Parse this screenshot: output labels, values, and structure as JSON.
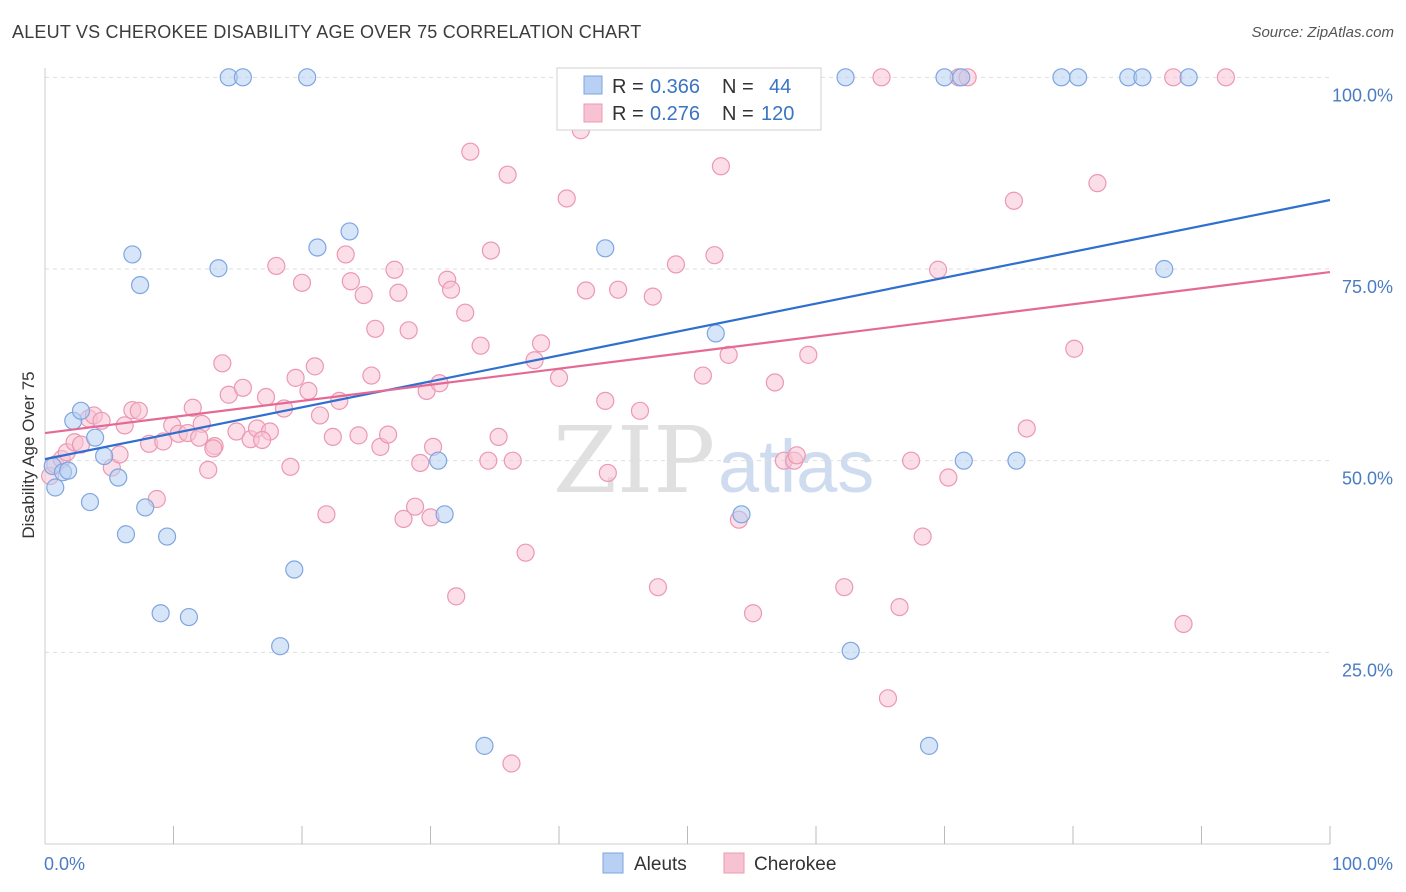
{
  "header": {
    "title": "ALEUT VS CHEROKEE DISABILITY AGE OVER 75 CORRELATION CHART",
    "source": "Source: ZipAtlas.com"
  },
  "watermark": {
    "zip": "ZIP",
    "atlas": "atlas"
  },
  "colors": {
    "aleut_fill": "#b7d0f3",
    "aleut_stroke": "#7ea6e0",
    "aleut_line": "#2f6fd0",
    "cherokee_fill": "#f7c3d3",
    "cherokee_stroke": "#ec98b3",
    "cherokee_line": "#e46a95",
    "tick_text": "#4a7cc4",
    "grid": "#dedede"
  },
  "stats": {
    "aleut": {
      "r_label": "R =",
      "r_value": "0.366",
      "n_label": "N =",
      "n_value": "44"
    },
    "cherokee": {
      "r_label": "R =",
      "r_value": "0.276",
      "n_label": "N =",
      "n_value": "120"
    }
  },
  "chart_data": {
    "type": "scatter",
    "title": "ALEUT VS CHEROKEE DISABILITY AGE OVER 75 CORRELATION CHART",
    "xlabel": "",
    "ylabel": "Disability Age Over 75",
    "xlim": [
      0,
      100
    ],
    "ylim": [
      0,
      102
    ],
    "x_tick_labels": [
      "0.0%",
      "100.0%"
    ],
    "y_ticks": [
      {
        "value": 25,
        "label": "25.0%"
      },
      {
        "value": 50,
        "label": "50.0%"
      },
      {
        "value": 75,
        "label": "75.0%"
      },
      {
        "value": 100,
        "label": "100.0%"
      }
    ],
    "grid": true,
    "legend_position": "bottom-center",
    "series": [
      {
        "name": "Aleuts",
        "color": "#b7d0f3",
        "trend": {
          "x": [
            0,
            100
          ],
          "y": [
            50.2,
            84.0
          ]
        },
        "points": [
          [
            0.6,
            49.3
          ],
          [
            0.8,
            46.5
          ],
          [
            1.4,
            48.5
          ],
          [
            1.8,
            48.7
          ],
          [
            2.2,
            55.2
          ],
          [
            2.8,
            56.5
          ],
          [
            3.5,
            44.6
          ],
          [
            3.9,
            53.0
          ],
          [
            4.6,
            50.6
          ],
          [
            5.7,
            47.8
          ],
          [
            6.3,
            40.4
          ],
          [
            6.8,
            76.9
          ],
          [
            7.4,
            72.9
          ],
          [
            7.8,
            43.9
          ],
          [
            9.0,
            30.1
          ],
          [
            9.5,
            40.1
          ],
          [
            11.2,
            29.6
          ],
          [
            13.5,
            75.1
          ],
          [
            14.3,
            100.0
          ],
          [
            15.4,
            100.0
          ],
          [
            18.3,
            25.8
          ],
          [
            19.4,
            35.8
          ],
          [
            20.4,
            100.0
          ],
          [
            21.2,
            77.8
          ],
          [
            23.7,
            79.9
          ],
          [
            30.6,
            50.0
          ],
          [
            31.1,
            43.0
          ],
          [
            34.2,
            12.8
          ],
          [
            43.6,
            77.7
          ],
          [
            52.2,
            66.6
          ],
          [
            54.2,
            43.0
          ],
          [
            62.3,
            100.0
          ],
          [
            62.7,
            25.2
          ],
          [
            68.8,
            12.8
          ],
          [
            70.0,
            100.0
          ],
          [
            71.3,
            100.0
          ],
          [
            71.5,
            50.0
          ],
          [
            75.6,
            50.0
          ],
          [
            79.1,
            100.0
          ],
          [
            80.4,
            100.0
          ],
          [
            84.3,
            100.0
          ],
          [
            85.4,
            100.0
          ],
          [
            87.1,
            75.0
          ],
          [
            89.0,
            100.0
          ]
        ]
      },
      {
        "name": "Cherokee",
        "color": "#f7c3d3",
        "trend": {
          "x": [
            0,
            100
          ],
          "y": [
            53.6,
            74.6
          ]
        },
        "points": [
          [
            0.4,
            48.0
          ],
          [
            0.8,
            49.5
          ],
          [
            1.3,
            50.2
          ],
          [
            1.7,
            51.1
          ],
          [
            2.3,
            52.4
          ],
          [
            2.8,
            52.1
          ],
          [
            3.4,
            55.5
          ],
          [
            3.8,
            55.9
          ],
          [
            4.4,
            55.2
          ],
          [
            5.2,
            49.1
          ],
          [
            5.8,
            50.8
          ],
          [
            6.2,
            54.6
          ],
          [
            6.8,
            56.6
          ],
          [
            7.3,
            56.5
          ],
          [
            8.1,
            52.2
          ],
          [
            8.7,
            45.0
          ],
          [
            9.2,
            52.5
          ],
          [
            9.9,
            54.6
          ],
          [
            10.4,
            53.5
          ],
          [
            11.1,
            53.6
          ],
          [
            11.5,
            56.9
          ],
          [
            12.2,
            54.8
          ],
          [
            12.7,
            48.8
          ],
          [
            13.2,
            51.9
          ],
          [
            13.8,
            62.7
          ],
          [
            14.3,
            58.6
          ],
          [
            14.9,
            53.8
          ],
          [
            15.4,
            59.5
          ],
          [
            16.0,
            52.8
          ],
          [
            16.5,
            54.2
          ],
          [
            17.2,
            58.3
          ],
          [
            17.5,
            53.8
          ],
          [
            18.0,
            75.4
          ],
          [
            18.6,
            56.8
          ],
          [
            19.1,
            49.2
          ],
          [
            19.5,
            60.8
          ],
          [
            20.0,
            73.2
          ],
          [
            20.5,
            59.1
          ],
          [
            21.0,
            62.3
          ],
          [
            21.4,
            55.9
          ],
          [
            21.9,
            43.0
          ],
          [
            22.4,
            53.1
          ],
          [
            22.9,
            57.8
          ],
          [
            23.4,
            76.9
          ],
          [
            23.8,
            73.4
          ],
          [
            24.4,
            53.3
          ],
          [
            24.8,
            71.6
          ],
          [
            25.4,
            61.1
          ],
          [
            25.7,
            67.2
          ],
          [
            26.1,
            51.8
          ],
          [
            26.7,
            53.4
          ],
          [
            27.2,
            74.9
          ],
          [
            27.5,
            71.9
          ],
          [
            27.9,
            42.4
          ],
          [
            28.3,
            67.0
          ],
          [
            28.8,
            44.0
          ],
          [
            29.2,
            49.7
          ],
          [
            29.7,
            59.1
          ],
          [
            30.2,
            51.8
          ],
          [
            30.7,
            60.1
          ],
          [
            31.3,
            73.6
          ],
          [
            31.6,
            72.3
          ],
          [
            32.0,
            32.3
          ],
          [
            32.7,
            69.3
          ],
          [
            33.1,
            90.3
          ],
          [
            33.9,
            65.0
          ],
          [
            34.7,
            77.4
          ],
          [
            35.3,
            53.1
          ],
          [
            36.0,
            87.3
          ],
          [
            36.4,
            50.0
          ],
          [
            37.4,
            38.0
          ],
          [
            38.1,
            63.1
          ],
          [
            38.6,
            65.3
          ],
          [
            40.0,
            60.8
          ],
          [
            40.6,
            84.2
          ],
          [
            41.7,
            93.1
          ],
          [
            42.1,
            72.2
          ],
          [
            43.6,
            57.8
          ],
          [
            43.8,
            48.4
          ],
          [
            44.6,
            72.3
          ],
          [
            46.3,
            56.5
          ],
          [
            47.3,
            71.4
          ],
          [
            47.7,
            33.5
          ],
          [
            49.1,
            75.6
          ],
          [
            50.3,
            100.0
          ],
          [
            51.2,
            61.1
          ],
          [
            52.1,
            76.8
          ],
          [
            52.6,
            88.4
          ],
          [
            53.2,
            63.8
          ],
          [
            54.0,
            42.3
          ],
          [
            55.1,
            30.1
          ],
          [
            55.4,
            100.0
          ],
          [
            56.8,
            60.2
          ],
          [
            57.5,
            50.0
          ],
          [
            58.3,
            50.0
          ],
          [
            58.5,
            50.7
          ],
          [
            59.4,
            63.8
          ],
          [
            62.2,
            33.5
          ],
          [
            65.1,
            100.0
          ],
          [
            65.6,
            19.0
          ],
          [
            66.5,
            30.9
          ],
          [
            67.4,
            50.0
          ],
          [
            68.3,
            40.1
          ],
          [
            69.5,
            74.9
          ],
          [
            70.3,
            47.8
          ],
          [
            71.1,
            100.0
          ],
          [
            71.8,
            100.0
          ],
          [
            75.4,
            83.9
          ],
          [
            76.4,
            54.2
          ],
          [
            80.1,
            64.6
          ],
          [
            81.9,
            86.2
          ],
          [
            87.8,
            100.0
          ],
          [
            88.6,
            28.7
          ],
          [
            91.9,
            100.0
          ],
          [
            36.3,
            10.5
          ],
          [
            34.5,
            50.0
          ],
          [
            13.1,
            51.6
          ],
          [
            30.0,
            42.6
          ],
          [
            16.9,
            52.7
          ],
          [
            12.0,
            53.0
          ]
        ]
      }
    ]
  }
}
